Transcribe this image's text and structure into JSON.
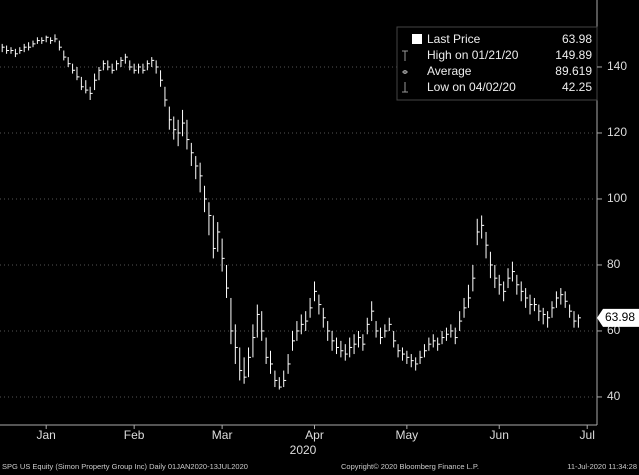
{
  "chart_data": {
    "type": "ohlc",
    "legend": [
      {
        "label": "Last Price",
        "value": 63.98
      },
      {
        "label": "High on 01/21/20",
        "value": 149.89
      },
      {
        "label": "Average",
        "value": 89.619
      },
      {
        "label": "Low on 04/02/20",
        "value": 42.25
      }
    ],
    "last_price_label": 63.98,
    "color": "#ffffff",
    "close": [
      146,
      145,
      145,
      144,
      145,
      146,
      146,
      147,
      148,
      148,
      149,
      148,
      148.5,
      146,
      143,
      141,
      139,
      137,
      134,
      133,
      132,
      136,
      139,
      141,
      140,
      139,
      141,
      142,
      143,
      140,
      139,
      140,
      139,
      141,
      142,
      140,
      136,
      130,
      124,
      121,
      120,
      123,
      118,
      114,
      110,
      107,
      100,
      95,
      85,
      90,
      82,
      73,
      60,
      55,
      48,
      46,
      52,
      58,
      65,
      60,
      52,
      50,
      45,
      43,
      45,
      50,
      57,
      60,
      62,
      63,
      67,
      72,
      68,
      64,
      60,
      57,
      55,
      54,
      53,
      55,
      56,
      58,
      56,
      62,
      66,
      60,
      58,
      60,
      62,
      57,
      54,
      53,
      52,
      51,
      50,
      52,
      54,
      56,
      57,
      56,
      58,
      59,
      60,
      58,
      63,
      67,
      70,
      76,
      90,
      92,
      86,
      80,
      76,
      74,
      72,
      76,
      78,
      74,
      72,
      70,
      68,
      68,
      66,
      65,
      64,
      67,
      70,
      71,
      69,
      66,
      63,
      63.98
    ],
    "high": [
      147,
      146.5,
      146,
      145.5,
      146,
      147,
      147.5,
      148,
      149,
      149,
      149.5,
      149,
      149.89,
      148,
      145,
      143,
      141,
      140,
      137,
      136,
      134,
      138,
      140,
      142,
      142,
      141,
      142,
      143,
      144,
      142,
      141,
      141,
      141,
      142,
      143,
      142,
      139,
      134,
      128,
      125,
      124,
      127,
      124,
      117,
      113,
      111,
      104,
      99,
      95,
      93,
      88,
      80,
      70,
      62,
      55,
      52,
      55,
      62,
      68,
      66,
      58,
      54,
      48,
      46,
      48,
      53,
      60,
      63,
      65,
      66,
      70,
      75,
      71,
      67,
      63,
      60,
      58,
      57,
      56,
      58,
      59,
      60,
      59,
      64,
      69,
      63,
      61,
      62,
      64,
      60,
      56,
      55,
      54,
      53,
      52,
      54,
      56,
      58,
      59,
      58,
      60,
      61,
      62,
      61,
      66,
      70,
      74,
      80,
      94,
      95,
      90,
      84,
      80,
      77,
      75,
      79,
      81,
      77,
      75,
      73,
      71,
      70,
      68,
      67,
      66,
      69,
      72,
      73,
      72,
      68,
      66,
      65
    ],
    "low": [
      144.5,
      144,
      144,
      143,
      144,
      144.5,
      145,
      146,
      147,
      147,
      147.5,
      147,
      147.5,
      145,
      142,
      140,
      138,
      136,
      133,
      132,
      130,
      133,
      136,
      139,
      139,
      138,
      139,
      140,
      141,
      139,
      138,
      138,
      138,
      139,
      140,
      138,
      134,
      128,
      121,
      118,
      116,
      119,
      115,
      110,
      106,
      102,
      96,
      89,
      82,
      84,
      78,
      70,
      56,
      50,
      45,
      44,
      46,
      52,
      58,
      57,
      50,
      47,
      43,
      42.25,
      43,
      47,
      54,
      57,
      59,
      60,
      64,
      69,
      65,
      61,
      57,
      54,
      53,
      52,
      51,
      52,
      53,
      55,
      54,
      59,
      63,
      58,
      56,
      58,
      60,
      55,
      52,
      51,
      50,
      49,
      48,
      50,
      52,
      54,
      55,
      54,
      56,
      57,
      58,
      56,
      60,
      64,
      67,
      72,
      86,
      88,
      82,
      76,
      73,
      71,
      69,
      73,
      75,
      71,
      69,
      67,
      65,
      66,
      63,
      62,
      61,
      64,
      67,
      68,
      67,
      64,
      61,
      61
    ],
    "xlim": [
      -0.5,
      135
    ],
    "xticks": [
      {
        "value": 10,
        "label": "Jan"
      },
      {
        "value": 30,
        "label": "Feb"
      },
      {
        "value": 50,
        "label": "Mar"
      },
      {
        "value": 71,
        "label": "Apr"
      },
      {
        "value": 92,
        "label": "May"
      },
      {
        "value": 113,
        "label": "Jun"
      },
      {
        "value": 133,
        "label": "Jul"
      }
    ],
    "year_label": "2020",
    "ylim": [
      31.5,
      160.3
    ],
    "yticks": [
      40,
      60,
      80,
      100,
      120,
      140
    ],
    "grid": true,
    "footer": [
      "SPG US Equity (Simon Property Group Inc)  Daily 01JAN2020-13JUL2020",
      "Copyright© 2020 Bloomberg Finance L.P.",
      "11-Jul-2020 11:34:28"
    ]
  }
}
